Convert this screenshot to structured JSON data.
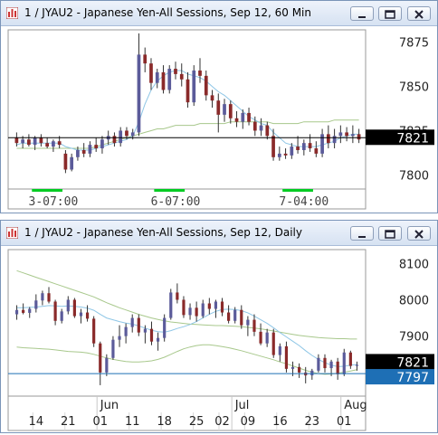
{
  "colors": {
    "bull": "#5b5b9a",
    "bear": "#8a2a2a",
    "doji": "#444444",
    "ma_fast": "#8ec6e6",
    "ma_slow": "#a8c88c",
    "last_price_box": "#000000",
    "settle_box": "#1e6fb5",
    "settle_line": "#1e6fb5",
    "session_bar": "#00cc22"
  },
  "window_top": {
    "title": "1 / JYAU2 - Japanese Yen-All Sessions, Sep 12, 60 Min",
    "buttons": [
      "minimize-icon",
      "restore-icon",
      "close-icon"
    ]
  },
  "window_bottom": {
    "title": "1 / JYAU2 - Japanese Yen-All Sessions, Sep 12, Daily",
    "buttons": [
      "minimize-icon",
      "restore-icon",
      "close-icon"
    ]
  },
  "chart_data": [
    {
      "type": "candlestick",
      "interval": "60 Min",
      "symbol": "JYAU2",
      "y_ticks": [
        "7875",
        "7850",
        "7825",
        "7800"
      ],
      "ylim": [
        7792,
        7882
      ],
      "last_price": "7821",
      "last_price_value": 7821,
      "x_labels": [
        "3-07:00",
        "6-07:00",
        "7-04:00"
      ],
      "x_label_index": [
        6,
        26,
        47
      ],
      "sessions": [
        [
          3,
          7
        ],
        [
          23,
          27
        ],
        [
          44,
          48
        ]
      ],
      "ohlc": [
        [
          7821,
          7824,
          7816,
          7818
        ],
        [
          7818,
          7822,
          7815,
          7820
        ],
        [
          7820,
          7823,
          7816,
          7817
        ],
        [
          7817,
          7822,
          7814,
          7821
        ],
        [
          7821,
          7823,
          7816,
          7818
        ],
        [
          7818,
          7821,
          7815,
          7816
        ],
        [
          7816,
          7820,
          7813,
          7819
        ],
        [
          7819,
          7822,
          7815,
          7817
        ],
        [
          7812,
          7814,
          7801,
          7803
        ],
        [
          7803,
          7812,
          7802,
          7810
        ],
        [
          7810,
          7816,
          7808,
          7814
        ],
        [
          7814,
          7818,
          7810,
          7812
        ],
        [
          7812,
          7819,
          7810,
          7817
        ],
        [
          7817,
          7821,
          7813,
          7815
        ],
        [
          7815,
          7822,
          7812,
          7820
        ],
        [
          7820,
          7825,
          7817,
          7822
        ],
        [
          7822,
          7824,
          7816,
          7818
        ],
        [
          7818,
          7827,
          7816,
          7825
        ],
        [
          7825,
          7827,
          7820,
          7822
        ],
        [
          7822,
          7826,
          7820,
          7824
        ],
        [
          7824,
          7880,
          7822,
          7868
        ],
        [
          7868,
          7872,
          7858,
          7863
        ],
        [
          7863,
          7866,
          7848,
          7852
        ],
        [
          7852,
          7860,
          7849,
          7858
        ],
        [
          7858,
          7862,
          7846,
          7848
        ],
        [
          7848,
          7862,
          7846,
          7860
        ],
        [
          7860,
          7864,
          7854,
          7857
        ],
        [
          7857,
          7863,
          7850,
          7854
        ],
        [
          7854,
          7858,
          7838,
          7841
        ],
        [
          7841,
          7862,
          7839,
          7859
        ],
        [
          7859,
          7866,
          7852,
          7856
        ],
        [
          7856,
          7859,
          7842,
          7845
        ],
        [
          7845,
          7848,
          7838,
          7842
        ],
        [
          7842,
          7846,
          7824,
          7834
        ],
        [
          7834,
          7843,
          7830,
          7840
        ],
        [
          7840,
          7842,
          7829,
          7832
        ],
        [
          7832,
          7836,
          7827,
          7830
        ],
        [
          7830,
          7837,
          7826,
          7835
        ],
        [
          7835,
          7838,
          7828,
          7830
        ],
        [
          7830,
          7833,
          7822,
          7825
        ],
        [
          7825,
          7832,
          7822,
          7828
        ],
        [
          7828,
          7830,
          7820,
          7822
        ],
        [
          7822,
          7826,
          7808,
          7810
        ],
        [
          7810,
          7816,
          7808,
          7812
        ],
        [
          7812,
          7815,
          7809,
          7811
        ],
        [
          7811,
          7818,
          7809,
          7816
        ],
        [
          7816,
          7822,
          7812,
          7814
        ],
        [
          7814,
          7820,
          7811,
          7818
        ],
        [
          7818,
          7823,
          7813,
          7815
        ],
        [
          7815,
          7819,
          7810,
          7812
        ],
        [
          7812,
          7826,
          7810,
          7823
        ],
        [
          7823,
          7828,
          7815,
          7818
        ],
        [
          7818,
          7826,
          7815,
          7822
        ],
        [
          7822,
          7828,
          7818,
          7824
        ],
        [
          7824,
          7827,
          7819,
          7822
        ],
        [
          7822,
          7828,
          7818,
          7823
        ],
        [
          7823,
          7826,
          7818,
          7820
        ]
      ],
      "ma_fast": [
        7817,
        7818,
        7818,
        7818,
        7818,
        7818,
        7818,
        7818,
        7816,
        7815,
        7814,
        7814,
        7814,
        7815,
        7816,
        7817,
        7818,
        7819,
        7820,
        7822,
        7830,
        7840,
        7848,
        7853,
        7856,
        7858,
        7859,
        7859,
        7857,
        7856,
        7855,
        7853,
        7850,
        7847,
        7845,
        7842,
        7839,
        7836,
        7833,
        7831,
        7829,
        7828,
        7824,
        7821,
        7818,
        7817,
        7816,
        7816,
        7816,
        7816,
        7817,
        7818,
        7819,
        7821,
        7822,
        7823,
        7823
      ],
      "ma_slow": [
        7815,
        7815,
        7815,
        7815,
        7815,
        7815,
        7815,
        7815,
        7815,
        7815,
        7815,
        7815,
        7815,
        7816,
        7817,
        7818,
        7819,
        7820,
        7821,
        7822,
        7823,
        7824,
        7825,
        7826,
        7826,
        7827,
        7828,
        7828,
        7828,
        7828,
        7829,
        7829,
        7829,
        7829,
        7829,
        7830,
        7830,
        7830,
        7830,
        7830,
        7830,
        7830,
        7829,
        7829,
        7829,
        7829,
        7829,
        7830,
        7830,
        7830,
        7830,
        7830,
        7831,
        7831,
        7831,
        7831,
        7831
      ]
    },
    {
      "type": "candlestick",
      "interval": "Daily",
      "symbol": "JYAU2",
      "y_ticks": [
        "8100",
        "8000",
        "7900"
      ],
      "ylim": [
        7735,
        8138
      ],
      "last_price": "7821",
      "last_price_value": 7821,
      "settle_price": "7797",
      "settle_price_value": 7797,
      "month_labels": [
        "Jun",
        "Jul",
        "Aug"
      ],
      "month_label_index": [
        13,
        34,
        51
      ],
      "date_labels": [
        "14",
        "21",
        "01",
        "11",
        "18",
        "25",
        "02",
        "09",
        "16",
        "23",
        "01"
      ],
      "date_label_index": [
        3,
        8,
        13,
        18,
        23,
        28,
        32,
        36,
        41,
        46,
        51
      ],
      "ohlc": [
        [
          7960,
          7985,
          7945,
          7972
        ],
        [
          7972,
          7990,
          7960,
          7964
        ],
        [
          7964,
          7980,
          7950,
          7975
        ],
        [
          7975,
          8015,
          7965,
          7998
        ],
        [
          7998,
          8025,
          7985,
          8018
        ],
        [
          8018,
          8035,
          7990,
          7995
        ],
        [
          7995,
          8000,
          7930,
          7942
        ],
        [
          7942,
          7975,
          7935,
          7968
        ],
        [
          7968,
          8010,
          7960,
          8000
        ],
        [
          8000,
          8005,
          7950,
          7955
        ],
        [
          7955,
          7975,
          7935,
          7965
        ],
        [
          7965,
          7985,
          7940,
          7948
        ],
        [
          7948,
          7955,
          7870,
          7880
        ],
        [
          7880,
          7885,
          7765,
          7800
        ],
        [
          7800,
          7850,
          7790,
          7840
        ],
        [
          7840,
          7900,
          7835,
          7890
        ],
        [
          7890,
          7930,
          7870,
          7900
        ],
        [
          7900,
          7935,
          7880,
          7925
        ],
        [
          7925,
          7960,
          7910,
          7950
        ],
        [
          7950,
          7960,
          7900,
          7910
        ],
        [
          7910,
          7930,
          7880,
          7920
        ],
        [
          7920,
          7940,
          7875,
          7885
        ],
        [
          7885,
          7910,
          7860,
          7895
        ],
        [
          7895,
          7960,
          7885,
          7950
        ],
        [
          7950,
          8030,
          7945,
          8020
        ],
        [
          8020,
          8045,
          7990,
          8000
        ],
        [
          8000,
          8010,
          7950,
          7958
        ],
        [
          7958,
          7990,
          7945,
          7978
        ],
        [
          7978,
          7995,
          7940,
          7955
        ],
        [
          7955,
          8000,
          7950,
          7990
        ],
        [
          7990,
          8005,
          7960,
          7975
        ],
        [
          7975,
          8000,
          7950,
          7995
        ],
        [
          7995,
          8005,
          7955,
          7965
        ],
        [
          7965,
          7985,
          7935,
          7942
        ],
        [
          7942,
          7980,
          7935,
          7972
        ],
        [
          7972,
          7985,
          7920,
          7930
        ],
        [
          7930,
          7955,
          7900,
          7945
        ],
        [
          7945,
          7960,
          7900,
          7912
        ],
        [
          7912,
          7935,
          7875,
          7880
        ],
        [
          7880,
          7920,
          7870,
          7910
        ],
        [
          7910,
          7920,
          7840,
          7848
        ],
        [
          7848,
          7880,
          7830,
          7872
        ],
        [
          7872,
          7885,
          7800,
          7810
        ],
        [
          7810,
          7830,
          7790,
          7815
        ],
        [
          7815,
          7825,
          7785,
          7800
        ],
        [
          7800,
          7815,
          7770,
          7792
        ],
        [
          7792,
          7810,
          7780,
          7805
        ],
        [
          7805,
          7850,
          7800,
          7840
        ],
        [
          7840,
          7850,
          7800,
          7812
        ],
        [
          7812,
          7835,
          7790,
          7830
        ],
        [
          7830,
          7840,
          7780,
          7795
        ],
        [
          7795,
          7865,
          7790,
          7855
        ],
        [
          7855,
          7860,
          7810,
          7818
        ],
        [
          7818,
          7830,
          7805,
          7821
        ]
      ],
      "ma_fast": [
        7978,
        7978,
        7979,
        7980,
        7982,
        7984,
        7983,
        7982,
        7983,
        7982,
        7980,
        7977,
        7971,
        7960,
        7950,
        7945,
        7940,
        7936,
        7933,
        7928,
        7922,
        7916,
        7912,
        7911,
        7915,
        7921,
        7926,
        7932,
        7940,
        7950,
        7960,
        7968,
        7973,
        7974,
        7973,
        7970,
        7964,
        7955,
        7945,
        7935,
        7923,
        7910,
        7898,
        7886,
        7874,
        7860,
        7847,
        7836,
        7827,
        7820,
        7816,
        7817,
        7820,
        7822
      ],
      "ma_slow": [
        8080,
        8074,
        8068,
        8062,
        8056,
        8050,
        8044,
        8038,
        8032,
        8026,
        8020,
        8014,
        8008,
        8000,
        7992,
        7985,
        7978,
        7972,
        7966,
        7960,
        7955,
        7950,
        7946,
        7942,
        7939,
        7937,
        7935,
        7933,
        7932,
        7931,
        7930,
        7929,
        7929,
        7928,
        7927,
        7926,
        7924,
        7922,
        7920,
        7917,
        7914,
        7911,
        7908,
        7905,
        7902,
        7900,
        7898,
        7896,
        7895,
        7894,
        7893,
        7893,
        7892,
        7892
      ],
      "ma_low": [
        7870,
        7868,
        7867,
        7866,
        7865,
        7864,
        7862,
        7860,
        7858,
        7857,
        7856,
        7854,
        7850,
        7845,
        7840,
        7836,
        7833,
        7830,
        7829,
        7829,
        7830,
        7832,
        7836,
        7842,
        7850,
        7858,
        7865,
        7870,
        7874,
        7876,
        7876,
        7874,
        7871,
        7868,
        7864,
        7860,
        7855,
        7850,
        7845,
        7840,
        7835,
        7829,
        7824,
        7818,
        7812,
        7806,
        7801,
        7797,
        7795,
        7796,
        7798,
        7801,
        7804,
        7808
      ]
    }
  ]
}
